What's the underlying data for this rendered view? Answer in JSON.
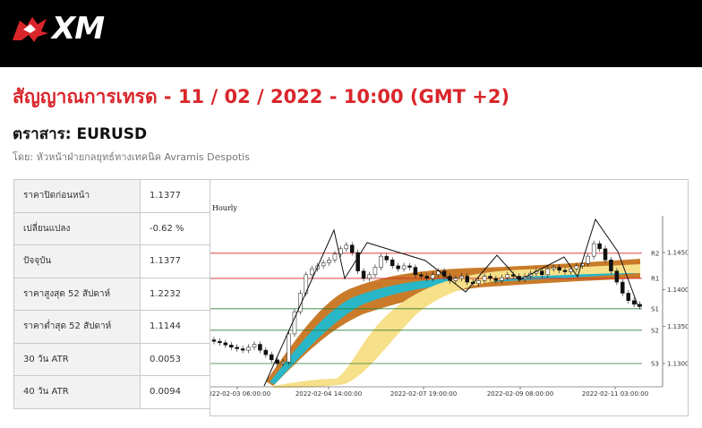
{
  "header": {
    "brand": "XM"
  },
  "title": "สัญญาณการเทรด - 11 / 02 / 2022 - 10:00 (GMT +2)",
  "instrument": "ตราสาร: EURUSD",
  "author": "โดย: หัวหน้าฝ่ายกลยุทธ์ทางเทคนิค Avramis Despotis",
  "stats": [
    {
      "label": "ราคาปิดก่อนหน้า",
      "value": "1.1377"
    },
    {
      "label": "เปลี่ยนแปลง",
      "value": "-0.62 %"
    },
    {
      "label": "ปัจจุบัน",
      "value": "1.1377"
    },
    {
      "label": "ราคาสูงสุด 52 สัปดาห์",
      "value": "1.2232"
    },
    {
      "label": "ราคาต่ำสุด 52 สัปดาห์",
      "value": "1.1144"
    },
    {
      "label": "30 วัน ATR",
      "value": "0.0053"
    },
    {
      "label": "40 วัน ATR",
      "value": "0.0094"
    }
  ],
  "chart_data": {
    "type": "candlestick",
    "timeframe": "Hourly",
    "x_ticks": [
      "2022-02-03 06:00:00",
      "2022-02-04 14:00:00",
      "2022-02-07 19:00:00",
      "2022-02-09 08:00:00",
      "2022-02-11 03:00:00"
    ],
    "y_ticks": [
      "1.1450",
      "1.1400",
      "1.1350",
      "1.1300"
    ],
    "levels": [
      {
        "name": "R2",
        "value": 1.1449,
        "color": "#d9262b"
      },
      {
        "name": "R1",
        "value": 1.1415,
        "color": "#d9262b"
      },
      {
        "name": "S1",
        "value": 1.1374,
        "color": "#2e7d32"
      },
      {
        "name": "S2",
        "value": 1.1345,
        "color": "#2e7d32"
      },
      {
        "name": "S3",
        "value": 1.13,
        "color": "#2e7d32"
      }
    ],
    "colors": {
      "band_outer": "#c97b2a",
      "band_inner": "#29b6c6",
      "band_slow": "#f7e08a",
      "candle_up": "#ffffff",
      "candle_down": "#111111"
    }
  }
}
